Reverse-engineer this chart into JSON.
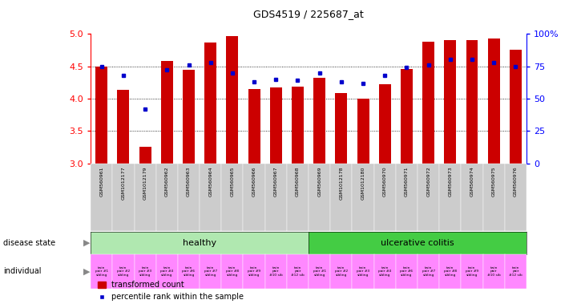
{
  "title": "GDS4519 / 225687_at",
  "samples": [
    "GSM560961",
    "GSM1012177",
    "GSM1012179",
    "GSM560962",
    "GSM560963",
    "GSM560964",
    "GSM560965",
    "GSM560966",
    "GSM560967",
    "GSM560968",
    "GSM560969",
    "GSM1012178",
    "GSM1012180",
    "GSM560970",
    "GSM560971",
    "GSM560972",
    "GSM560973",
    "GSM560974",
    "GSM560975",
    "GSM560976"
  ],
  "bar_values": [
    4.5,
    4.13,
    3.26,
    4.58,
    4.45,
    4.87,
    4.96,
    4.15,
    4.17,
    4.19,
    4.32,
    4.08,
    4.0,
    4.22,
    4.46,
    4.88,
    4.9,
    4.9,
    4.93,
    4.76
  ],
  "dot_values": [
    75,
    68,
    42,
    72,
    76,
    78,
    70,
    63,
    65,
    64,
    70,
    63,
    62,
    68,
    74,
    76,
    80,
    80,
    78,
    75
  ],
  "disease_state": [
    "healthy",
    "healthy",
    "healthy",
    "healthy",
    "healthy",
    "healthy",
    "healthy",
    "healthy",
    "healthy",
    "healthy",
    "ulcerative colitis",
    "ulcerative colitis",
    "ulcerative colitis",
    "ulcerative colitis",
    "ulcerative colitis",
    "ulcerative colitis",
    "ulcerative colitis",
    "ulcerative colitis",
    "ulcerative colitis",
    "ulcerative colitis"
  ],
  "individual": [
    "twin\npair #1\nsibling",
    "twin\npair #2\nsibling",
    "twin\npair #3\nsibling",
    "twin\npair #4\nsibling",
    "twin\npair #6\nsibling",
    "twin\npair #7\nsibling",
    "twin\npair #8\nsibling",
    "twin\npair #9\nsibling",
    "twin\npair\n#10 sib",
    "twin\npair\n#12 sib",
    "twin\npair #1\nsibling",
    "twin\npair #2\nsibling",
    "twin\npair #3\nsibling",
    "twin\npair #4\nsibling",
    "twin\npair #6\nsibling",
    "twin\npair #7\nsibling",
    "twin\npair #8\nsibling",
    "twin\npair #9\nsibling",
    "twin\npair\n#10 sib",
    "twin\npair\n#12 sib"
  ],
  "n_healthy": 10,
  "n_uc": 10,
  "ylim_left": [
    3.0,
    5.0
  ],
  "ylim_right": [
    0,
    100
  ],
  "yticks_left": [
    3.0,
    3.5,
    4.0,
    4.5,
    5.0
  ],
  "yticks_right": [
    0,
    25,
    50,
    75,
    100
  ],
  "bar_color": "#cc0000",
  "dot_color": "#0000cc",
  "healthy_ds_color": "#b0e8b0",
  "uc_ds_color": "#44cc44",
  "individual_color": "#ff88ff",
  "xticklabel_bg": "#cccccc",
  "legend_bar_label": "transformed count",
  "legend_dot_label": "percentile rank within the sample",
  "disease_label": "disease state",
  "individual_label": "individual",
  "grid_dotted_vals": [
    3.5,
    4.0,
    4.5
  ]
}
